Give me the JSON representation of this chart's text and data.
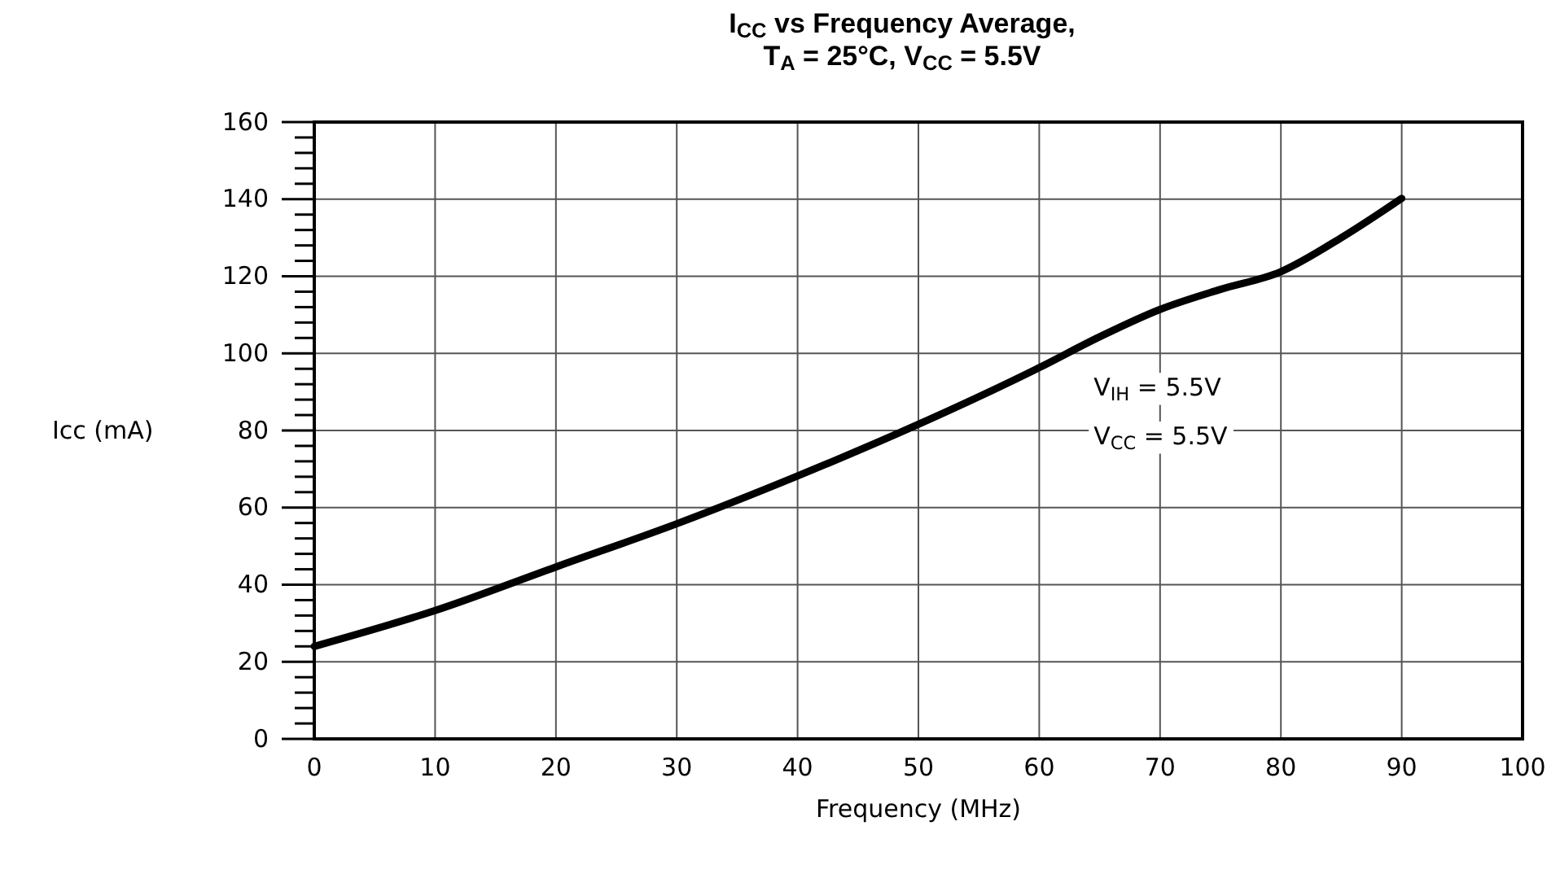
{
  "chart_data": {
    "type": "line",
    "title": "I$_{CC}$ vs Frequency Average,",
    "subtitle": "T$_{A}$ = 25°C, V$_{CC}$ = 5.5V",
    "xlabel": "Frequency (MHz)",
    "ylabel": "Icc (mA)",
    "x": [
      0,
      10,
      20,
      30,
      40,
      50,
      60,
      65,
      70,
      75,
      80,
      85,
      90
    ],
    "series": [
      {
        "color": "#000000",
        "values": [
          24,
          33.3,
          44.6,
          55.8,
          68.2,
          81.6,
          96.3,
          104.3,
          111.4,
          116.6,
          121.2,
          130,
          140.2
        ]
      }
    ],
    "xlim": [
      0,
      100
    ],
    "xticks": [
      0,
      10,
      20,
      30,
      40,
      50,
      60,
      70,
      80,
      90,
      100
    ],
    "ylim": [
      0,
      160
    ],
    "yticks": [
      0,
      {
        "value": 4,
        "label": null
      },
      {
        "value": 8,
        "label": null
      },
      {
        "value": 12,
        "label": null
      },
      {
        "value": 16,
        "label": null
      },
      20,
      {
        "value": 24,
        "label": null
      },
      {
        "value": 28,
        "label": null
      },
      {
        "value": 32,
        "label": null
      },
      {
        "value": 36,
        "label": null
      },
      40,
      {
        "value": 44,
        "label": null
      },
      {
        "value": 48,
        "label": null
      },
      {
        "value": 52,
        "label": null
      },
      {
        "value": 56,
        "label": null
      },
      60,
      {
        "value": 64,
        "label": null
      },
      {
        "value": 68,
        "label": null
      },
      {
        "value": 72,
        "label": null
      },
      {
        "value": 76,
        "label": null
      },
      80,
      {
        "value": 84,
        "label": null
      },
      {
        "value": 88,
        "label": null
      },
      {
        "value": 92,
        "label": null
      },
      {
        "value": 96,
        "label": null
      },
      100,
      {
        "value": 104,
        "label": null
      },
      {
        "value": 108,
        "label": null
      },
      {
        "value": 112,
        "label": null
      },
      {
        "value": 116,
        "label": null
      },
      120,
      {
        "value": 124,
        "label": null
      },
      {
        "value": 128,
        "label": null
      },
      {
        "value": 132,
        "label": null
      },
      {
        "value": 136,
        "label": null
      },
      140,
      {
        "value": 144,
        "label": null
      },
      {
        "value": 148,
        "label": null
      },
      {
        "value": 152,
        "label": null
      },
      {
        "value": 156,
        "label": null
      },
      160
    ],
    "annotations": [
      "V$_{IH}$ = 5.5V",
      "V$_{CC}$ = 5.5V"
    ],
    "grid": true,
    "marker": "none",
    "line_style": "solid"
  }
}
